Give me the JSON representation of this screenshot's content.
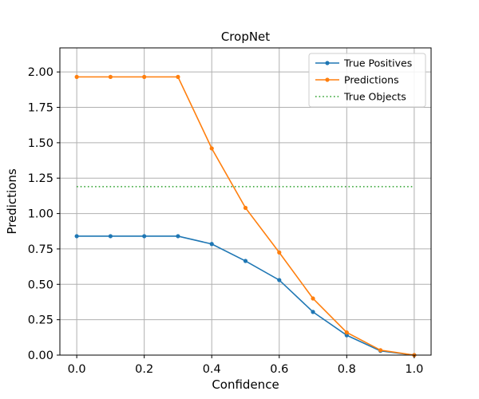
{
  "chart_data": {
    "type": "line",
    "title": "CropNet",
    "xlabel": "Confidence",
    "ylabel": "Predictions",
    "xlim": [
      -0.05,
      1.05
    ],
    "ylim": [
      0,
      2.17
    ],
    "xticks": [
      0.0,
      0.2,
      0.4,
      0.6,
      0.8,
      1.0
    ],
    "xtick_labels": [
      "0.0",
      "0.2",
      "0.4",
      "0.6",
      "0.8",
      "1.0"
    ],
    "yticks": [
      0.0,
      0.25,
      0.5,
      0.75,
      1.0,
      1.25,
      1.5,
      1.75,
      2.0
    ],
    "ytick_labels": [
      "0.00",
      "0.25",
      "0.50",
      "0.75",
      "1.00",
      "1.25",
      "1.50",
      "1.75",
      "2.00"
    ],
    "grid": true,
    "legend_position": "top-right",
    "series": [
      {
        "name": "True Positives",
        "color": "#1f77b4",
        "style": "solid",
        "marker": "dot",
        "x": [
          0.0,
          0.1,
          0.2,
          0.3,
          0.4,
          0.5,
          0.6,
          0.7,
          0.8,
          0.9,
          1.0
        ],
        "y": [
          0.84,
          0.84,
          0.84,
          0.84,
          0.785,
          0.665,
          0.53,
          0.305,
          0.14,
          0.03,
          0.0
        ]
      },
      {
        "name": "Predictions",
        "color": "#ff7f0e",
        "style": "solid",
        "marker": "dot",
        "x": [
          0.0,
          0.1,
          0.2,
          0.3,
          0.4,
          0.5,
          0.6,
          0.7,
          0.8,
          0.9,
          1.0
        ],
        "y": [
          1.965,
          1.965,
          1.965,
          1.965,
          1.46,
          1.04,
          0.725,
          0.4,
          0.16,
          0.035,
          0.0
        ]
      },
      {
        "name": "True Objects",
        "color": "#2ca02c",
        "style": "dotted",
        "marker": "none",
        "x": [
          0.0,
          1.0
        ],
        "y": [
          1.19,
          1.19
        ]
      }
    ]
  }
}
